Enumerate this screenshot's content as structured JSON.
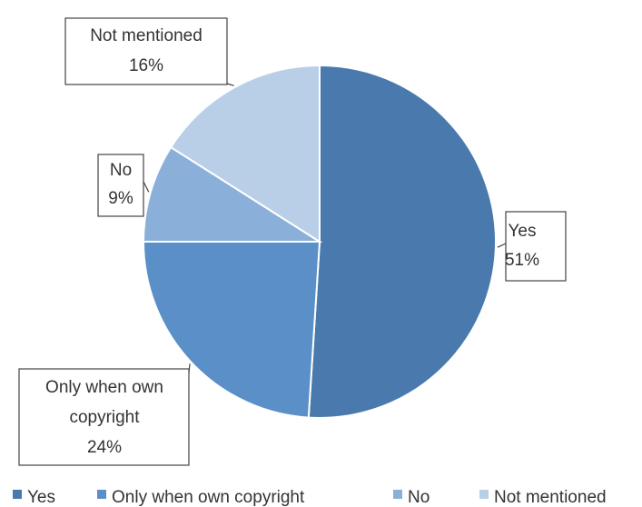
{
  "chart_data": {
    "type": "pie",
    "title": "",
    "start_angle_deg": 0,
    "direction": "clockwise",
    "legend_position": "bottom",
    "slices": [
      {
        "label": "Yes",
        "value": 51,
        "value_label": "51%",
        "color": "#4A7AAD"
      },
      {
        "label": "Only when own copyright",
        "value": 24,
        "value_label": "24%",
        "color": "#5A8FC8"
      },
      {
        "label": "No",
        "value": 9,
        "value_label": "9%",
        "color": "#8AB0DA"
      },
      {
        "label": "Not mentioned",
        "value": 16,
        "value_label": "16%",
        "color": "#B9CFE8"
      }
    ]
  }
}
